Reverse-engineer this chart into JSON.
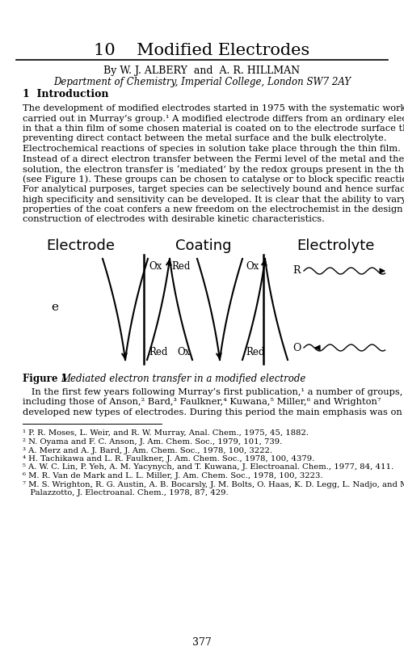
{
  "title": "10    Modified Electrodes",
  "author_line": "By W. J. ALBERY  and  A. R. HILLMAN",
  "dept_line": "Department of Chemistry, Imperial College, London SW7 2AY",
  "section1": "1  Introduction",
  "para1_lines": [
    "The development of modified electrodes started in 1975 with the systematic work",
    "carried out in Murray’s group.¹ A modified electrode differs from an ordinary electrode",
    "in that a thin film of some chosen material is coated on to the electrode surface thereby",
    "preventing direct contact between the metal surface and the bulk electrolyte.",
    "Electrochemical reactions of species in solution take place through the thin film.",
    "Instead of a direct electron transfer between the Fermi level of the metal and the ion in",
    "solution, the electron transfer is ‘mediated’ by the redox groups present in the thin layer",
    "(see Figure 1). These groups can be chosen to catalyse or to block specific reactions.",
    "For analytical purposes, target species can be selectively bound and hence surfaces of",
    "high specificity and sensitivity can be developed. It is clear that the ability to vary the",
    "properties of the coat confers a new freedom on the electrochemist in the design and",
    "construction of electrodes with desirable kinetic characteristics."
  ],
  "label_electrode": "Electrode",
  "label_coating": "Coating",
  "label_electrolyte": "Electrolyte",
  "para2_lines": [
    "   In the first few years following Murray’s first publication,¹ a number of groups,",
    "including those of Anson,² Bard,³ Faulkner,⁴ Kuwana,⁵ Miller,⁶ and Wrighton⁷",
    "developed new types of electrodes. During this period the main emphasis was on the"
  ],
  "footnotes": [
    [
      "¹ P. R. Moses, L. Weir, and R. W. Murray, ",
      "Anal. Chem.",
      ", 1975, ",
      "45",
      ", 1882."
    ],
    [
      "² N. Oyama and F. C. Anson, ",
      "J. Am. Chem. Soc.",
      ", 1979, ",
      "101",
      ", 739."
    ],
    [
      "³ A. Merz and A. J. Bard, ",
      "J. Am. Chem. Soc.",
      ", 1978, ",
      "100",
      ", 3222."
    ],
    [
      "⁴ H. Tachikawa and L. R. Faulkner, ",
      "J. Am. Chem. Soc.",
      ", 1978, ",
      "100",
      ", 4379."
    ],
    [
      "⁵ A. W. C. Lin, P. Yeh, A. M. Yacynych, and T. Kuwana, ",
      "J. Electroanal. Chem.",
      ", 1977, ",
      "84",
      ", 411."
    ],
    [
      "⁶ M. R. Van de Mark and L. L. Miller, ",
      "J. Am. Chem. Soc.",
      ", 1978, ",
      "100",
      ", 3223."
    ],
    [
      "⁷ M. S. Wrighton, R. G. Austin, A. B. Bocarsly, J. M. Bolts, O. Haas, K. D. Legg, L. Nadjo, and M. C.",
      "   Palazzotto, ",
      "J. Electroanal. Chem.",
      ", 1978, ",
      "87",
      ", 429."
    ]
  ],
  "page_number": "377",
  "bg_color": "#ffffff",
  "text_color": "#000000"
}
